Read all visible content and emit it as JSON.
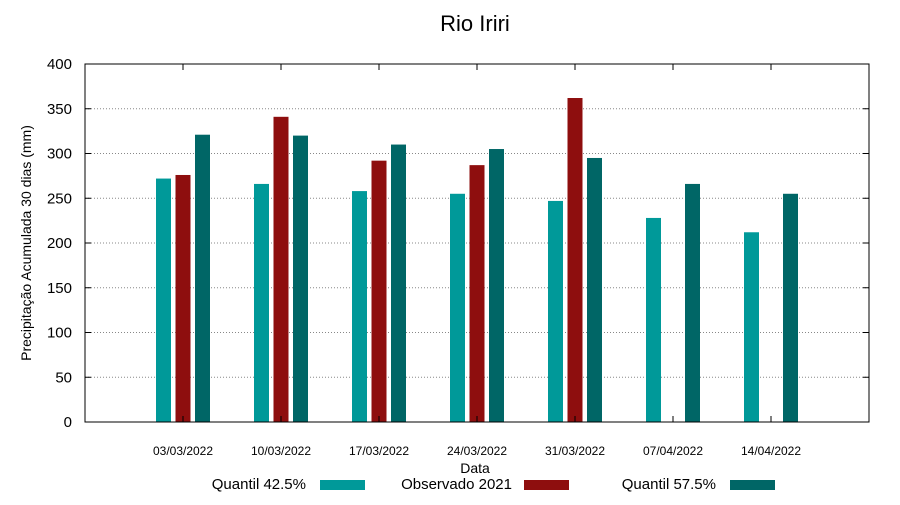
{
  "chart_data": {
    "type": "bar",
    "title": "Rio Iriri",
    "xlabel": "Data",
    "ylabel": "Precipitação Acumulada 30 dias (mm)",
    "ylim": [
      0,
      400
    ],
    "yticks": [
      0,
      50,
      100,
      150,
      200,
      250,
      300,
      350,
      400
    ],
    "grid": true,
    "legend_position": "bottom",
    "categories": [
      "03/03/2022",
      "10/03/2022",
      "17/03/2022",
      "24/03/2022",
      "31/03/2022",
      "07/04/2022",
      "14/04/2022"
    ],
    "series": [
      {
        "name": "Quantil 42.5%",
        "color": "#009999",
        "values": [
          272,
          266,
          258,
          255,
          247,
          228,
          212
        ]
      },
      {
        "name": "Observado 2021",
        "color": "#8e0e0e",
        "values": [
          276,
          341,
          292,
          287,
          362,
          null,
          null
        ]
      },
      {
        "name": "Quantil 57.5%",
        "color": "#006666",
        "values": [
          321,
          320,
          310,
          305,
          295,
          266,
          255
        ]
      }
    ]
  }
}
